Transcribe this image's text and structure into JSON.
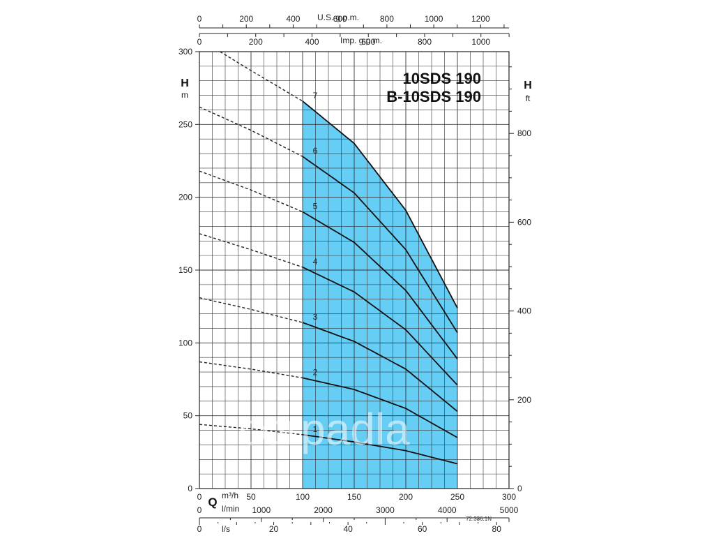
{
  "chart_data": {
    "type": "line",
    "title_lines": [
      "10SDS 190",
      "B-10SDS 190"
    ],
    "y_left": {
      "label": "H",
      "unit": "m",
      "min": 0,
      "max": 300,
      "ticks": [
        0,
        50,
        100,
        150,
        200,
        250,
        300
      ]
    },
    "y_right": {
      "label": "H",
      "unit": "ft",
      "ticks": [
        0,
        200,
        400,
        600,
        800
      ]
    },
    "x_q": {
      "label": "Q",
      "unit": "m³/h",
      "min": 0,
      "max": 300,
      "ticks": [
        0,
        50,
        100,
        150,
        200,
        250,
        300
      ]
    },
    "x_lmin": {
      "unit": "l/min",
      "ticks": [
        0,
        1000,
        2000,
        3000,
        4000,
        5000
      ]
    },
    "x_ls": {
      "unit": "l/s",
      "ticks": [
        0,
        20,
        40,
        60,
        80
      ]
    },
    "x_us": {
      "label": "U.S. g.p.m.",
      "ticks": [
        0,
        200,
        400,
        600,
        800,
        1000,
        1200
      ]
    },
    "x_imp": {
      "label": "Imp. g.p.m.",
      "ticks": [
        0,
        200,
        400,
        600,
        800,
        1000
      ]
    },
    "operating_range": [
      100,
      250
    ],
    "range_color": "#66cdf5",
    "series": [
      {
        "name": "1",
        "points": [
          [
            0,
            44
          ],
          [
            50,
            41
          ],
          [
            100,
            37
          ],
          [
            150,
            32
          ],
          [
            200,
            26
          ],
          [
            250,
            17
          ]
        ]
      },
      {
        "name": "2",
        "points": [
          [
            0,
            87
          ],
          [
            50,
            82
          ],
          [
            100,
            76
          ],
          [
            150,
            68
          ],
          [
            200,
            55
          ],
          [
            250,
            35
          ]
        ]
      },
      {
        "name": "3",
        "points": [
          [
            0,
            131
          ],
          [
            50,
            123
          ],
          [
            100,
            114
          ],
          [
            150,
            101
          ],
          [
            200,
            82
          ],
          [
            250,
            53
          ]
        ]
      },
      {
        "name": "4",
        "points": [
          [
            0,
            175
          ],
          [
            50,
            164
          ],
          [
            100,
            152
          ],
          [
            150,
            135
          ],
          [
            200,
            109
          ],
          [
            250,
            71
          ]
        ]
      },
      {
        "name": "5",
        "points": [
          [
            0,
            218
          ],
          [
            50,
            205
          ],
          [
            100,
            190
          ],
          [
            150,
            169
          ],
          [
            200,
            136
          ],
          [
            250,
            89
          ]
        ]
      },
      {
        "name": "6",
        "points": [
          [
            0,
            262
          ],
          [
            50,
            246
          ],
          [
            100,
            228
          ],
          [
            150,
            203
          ],
          [
            200,
            164
          ],
          [
            250,
            107
          ]
        ]
      },
      {
        "name": "7",
        "points": [
          [
            20,
            300
          ],
          [
            50,
            287
          ],
          [
            100,
            266
          ],
          [
            150,
            237
          ],
          [
            200,
            191
          ],
          [
            250,
            124
          ]
        ]
      }
    ],
    "watermark": "corpadla",
    "code": "72.336.1N"
  }
}
